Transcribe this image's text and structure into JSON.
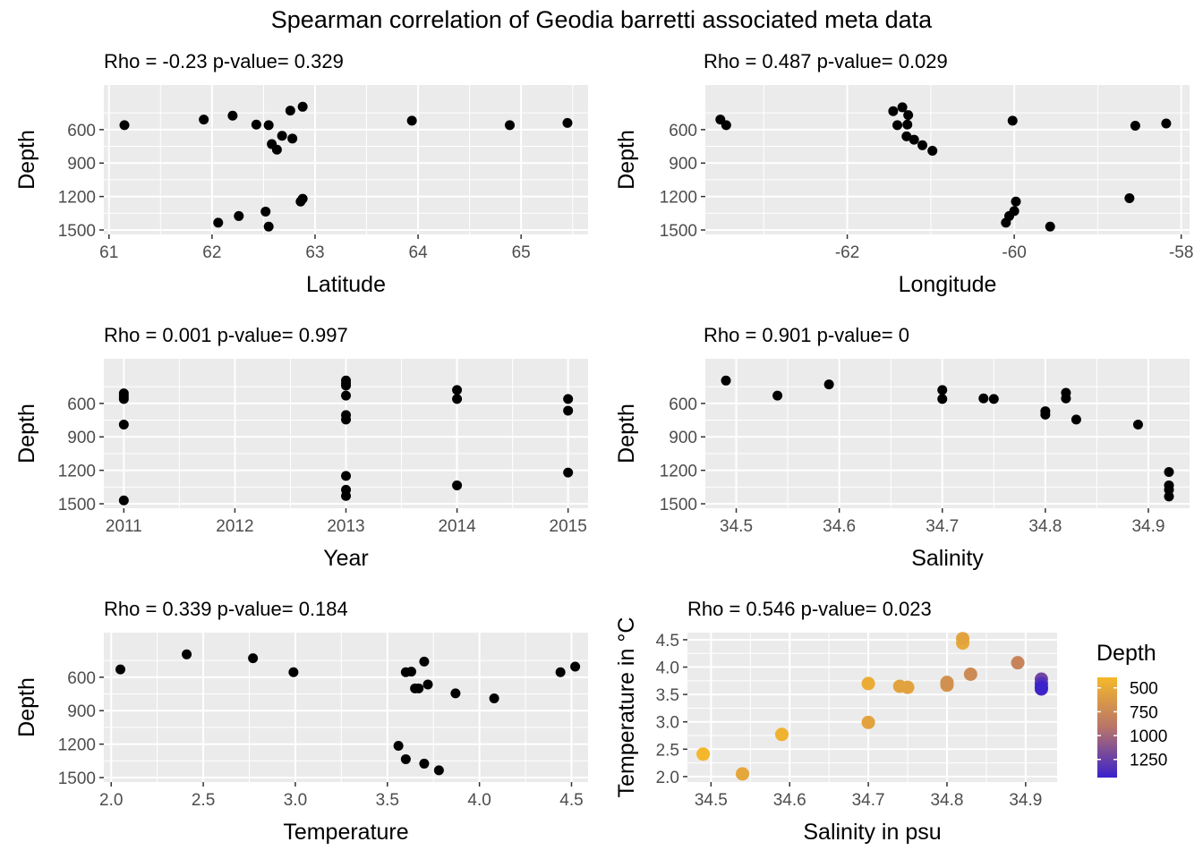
{
  "title": "Spearman correlation of Geodia barretti associated meta data",
  "colors": {
    "panel_bg": "#EBEBEB",
    "grid": "#FFFFFF",
    "point": "#000000",
    "tick_text": "#4D4D4D",
    "gradient_high": "#F5B82A",
    "gradient_mid": "#B8746A",
    "gradient_low": "#3A22CC"
  },
  "chart_data": [
    {
      "type": "scatter",
      "annotation": "Rho = -0.23  p-value= 0.329",
      "xlabel": "Latitude",
      "ylabel": "Depth",
      "xlim": [
        60.95,
        65.65
      ],
      "ylim": [
        1540,
        200
      ],
      "y_reversed": true,
      "xticks": [
        61,
        62,
        63,
        64,
        65
      ],
      "xtick_labels": [
        "61",
        "62",
        "63",
        "64",
        "65"
      ],
      "yticks": [
        600,
        900,
        1200,
        1500
      ],
      "ytick_labels": [
        "600",
        "900",
        "1200",
        "1500"
      ],
      "x": [
        61.15,
        61.92,
        62.2,
        62.43,
        62.55,
        62.68,
        62.76,
        62.88,
        63.94,
        64.89,
        65.45,
        62.58,
        62.63,
        62.78,
        62.86,
        62.88,
        62.52,
        62.26,
        62.06,
        62.55
      ],
      "y": [
        560,
        510,
        475,
        555,
        560,
        655,
        430,
        395,
        520,
        560,
        540,
        730,
        780,
        680,
        1245,
        1220,
        1335,
        1375,
        1435,
        1470
      ]
    },
    {
      "type": "scatter",
      "annotation": "Rho = 0.487  p-value= 0.029",
      "xlabel": "Longitude",
      "ylabel": "Depth",
      "xlim": [
        -63.7,
        -57.9
      ],
      "ylim": [
        1540,
        200
      ],
      "y_reversed": true,
      "xticks": [
        -62,
        -60,
        -58
      ],
      "xtick_labels": [
        "-62",
        "-60",
        "-58"
      ],
      "yticks": [
        600,
        900,
        1200,
        1500
      ],
      "ytick_labels": [
        "600",
        "900",
        "1200",
        "1500"
      ],
      "x": [
        -63.52,
        -63.45,
        -61.45,
        -61.34,
        -61.27,
        -61.28,
        -61.4,
        -61.29,
        -61.2,
        -61.1,
        -60.98,
        -60.02,
        -58.55,
        -58.18,
        -58.62,
        -59.98,
        -60.0,
        -60.06,
        -60.1,
        -59.57
      ],
      "y": [
        510,
        560,
        435,
        400,
        470,
        555,
        560,
        660,
        690,
        740,
        790,
        520,
        565,
        545,
        1215,
        1245,
        1330,
        1375,
        1435,
        1470
      ]
    },
    {
      "type": "scatter",
      "annotation": "Rho = 0.001  p-value= 0.997",
      "xlabel": "Year",
      "ylabel": "Depth",
      "xlim": [
        2010.82,
        2015.18
      ],
      "ylim": [
        1540,
        200
      ],
      "y_reversed": true,
      "xticks": [
        2011,
        2012,
        2013,
        2014,
        2015
      ],
      "xtick_labels": [
        "2011",
        "2012",
        "2013",
        "2014",
        "2015"
      ],
      "yticks": [
        600,
        900,
        1200,
        1500
      ],
      "ytick_labels": [
        "600",
        "900",
        "1200",
        "1500"
      ],
      "x": [
        2011,
        2011,
        2011,
        2011,
        2011,
        2013,
        2013,
        2013,
        2013,
        2013,
        2013,
        2013,
        2013,
        2013,
        2014,
        2014,
        2014,
        2015,
        2015,
        2015
      ],
      "y": [
        510,
        535,
        560,
        790,
        1470,
        395,
        420,
        440,
        530,
        705,
        745,
        1250,
        1375,
        1430,
        480,
        560,
        1335,
        560,
        665,
        1220
      ]
    },
    {
      "type": "scatter",
      "annotation": "Rho = 0.901  p-value= 0",
      "xlabel": "Salinity",
      "ylabel": "Depth",
      "xlim": [
        34.47,
        34.94
      ],
      "ylim": [
        1540,
        200
      ],
      "y_reversed": true,
      "xticks": [
        34.5,
        34.6,
        34.7,
        34.8,
        34.9
      ],
      "xtick_labels": [
        "34.5",
        "34.6",
        "34.7",
        "34.8",
        "34.9"
      ],
      "yticks": [
        600,
        900,
        1200,
        1500
      ],
      "ytick_labels": [
        "600",
        "900",
        "1200",
        "1500"
      ],
      "x": [
        34.49,
        34.54,
        34.59,
        34.7,
        34.7,
        34.74,
        34.75,
        34.8,
        34.8,
        34.82,
        34.82,
        34.83,
        34.89,
        34.92,
        34.92,
        34.92,
        34.92
      ],
      "y": [
        395,
        530,
        430,
        480,
        560,
        555,
        560,
        670,
        700,
        505,
        555,
        745,
        790,
        1215,
        1335,
        1375,
        1435
      ]
    },
    {
      "type": "scatter",
      "annotation": "Rho = 0.339  p-value= 0.184",
      "xlabel": "Temperature",
      "ylabel": "Depth",
      "xlim": [
        1.96,
        4.59
      ],
      "ylim": [
        1540,
        200
      ],
      "y_reversed": true,
      "xticks": [
        2.0,
        2.5,
        3.0,
        3.5,
        4.0,
        4.5
      ],
      "xtick_labels": [
        "2.0",
        "2.5",
        "3.0",
        "3.5",
        "4.0",
        "4.5"
      ],
      "yticks": [
        600,
        900,
        1200,
        1500
      ],
      "ytick_labels": [
        "600",
        "900",
        "1200",
        "1500"
      ],
      "x": [
        2.05,
        2.41,
        2.77,
        2.99,
        3.6,
        3.63,
        3.65,
        3.67,
        3.7,
        3.72,
        3.87,
        4.08,
        4.44,
        4.52,
        3.56,
        3.6,
        3.7,
        3.78
      ],
      "y": [
        530,
        395,
        430,
        555,
        555,
        550,
        700,
        700,
        460,
        665,
        745,
        790,
        555,
        505,
        1215,
        1335,
        1375,
        1435
      ]
    },
    {
      "type": "scatter",
      "annotation": "Rho = 0.546  p-value= 0.023",
      "xlabel": "Salinity in psu",
      "ylabel": "Temperature in °C",
      "xlim": [
        34.47,
        34.94
      ],
      "ylim": [
        1.9,
        4.63
      ],
      "xticks": [
        34.5,
        34.6,
        34.7,
        34.8,
        34.9
      ],
      "xtick_labels": [
        "34.5",
        "34.6",
        "34.7",
        "34.8",
        "34.9"
      ],
      "yticks": [
        2.0,
        2.5,
        3.0,
        3.5,
        4.0,
        4.5
      ],
      "ytick_labels": [
        "2.0",
        "2.5",
        "3.0",
        "3.5",
        "4.0",
        "4.5"
      ],
      "x": [
        34.49,
        34.54,
        34.59,
        34.7,
        34.7,
        34.74,
        34.75,
        34.8,
        34.8,
        34.82,
        34.82,
        34.83,
        34.89,
        34.92,
        34.92,
        34.92,
        34.92
      ],
      "y": [
        2.41,
        2.05,
        2.77,
        2.99,
        3.7,
        3.65,
        3.63,
        3.67,
        3.72,
        4.44,
        4.52,
        3.87,
        4.08,
        3.78,
        3.7,
        3.6,
        3.63
      ],
      "depth": [
        395,
        530,
        430,
        555,
        480,
        555,
        560,
        670,
        700,
        505,
        555,
        745,
        790,
        1215,
        1335,
        1375,
        1435
      ],
      "legend": {
        "title": "Depth",
        "placement": "right",
        "ticks": [
          500,
          750,
          1000,
          1250
        ],
        "tick_labels": [
          "500",
          "750",
          "1000",
          "1250"
        ],
        "range": [
          390,
          1440
        ]
      }
    }
  ]
}
